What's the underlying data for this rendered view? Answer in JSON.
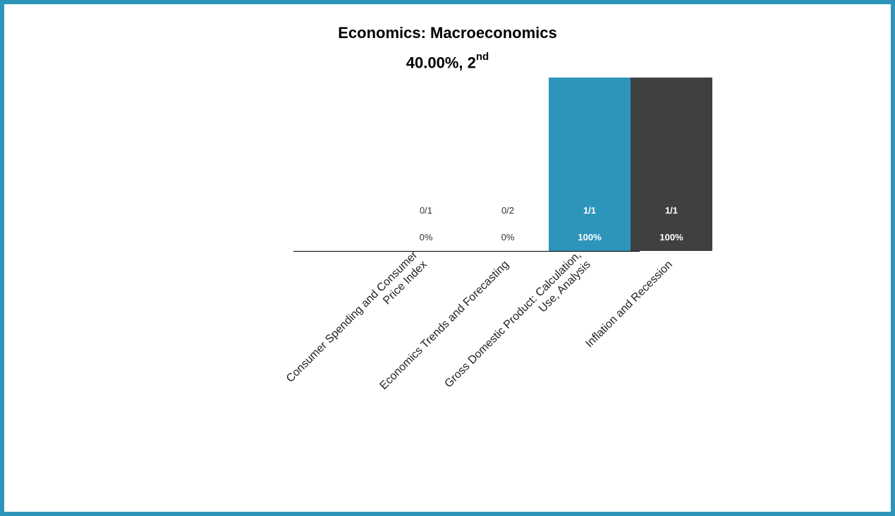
{
  "chart_data": {
    "type": "bar",
    "title": "Economics: Macroeconomics",
    "subtitle": {
      "score": "40.00%, 2",
      "suffix": "nd"
    },
    "categories": [
      "Consumer Spending and Consumer Price Index",
      "Economics Trends and Forecasting",
      "Gross Domestic Product: Calculation, Use, Analysis",
      "Inflation and Recession"
    ],
    "category_label_lines": [
      [
        "Consumer Spending and Consumer",
        "Price Index"
      ],
      [
        "Economics Trends and Forecasting"
      ],
      [
        "Gross Domestic Product: Calculation,",
        "Use, Analysis"
      ],
      [
        "Inflation and Recession"
      ]
    ],
    "values": [
      0,
      0,
      100,
      100
    ],
    "fractions": [
      "0/1",
      "0/2",
      "1/1",
      "1/1"
    ],
    "percent_labels": [
      "0%",
      "0%",
      "100%",
      "100%"
    ],
    "colors": [
      "#2e95ba",
      "#2e95ba",
      "#2e95ba",
      "#404042"
    ],
    "ylim": [
      0,
      100
    ],
    "xlabel": "",
    "ylabel": "",
    "grid": false,
    "legend": "none"
  },
  "colors": {
    "frame": "#2e95ba",
    "accent": "#2e95ba",
    "dark": "#404042",
    "axis": "#000000",
    "label_dark_bg": "#ffffff",
    "label_light_bg": "#333333"
  }
}
